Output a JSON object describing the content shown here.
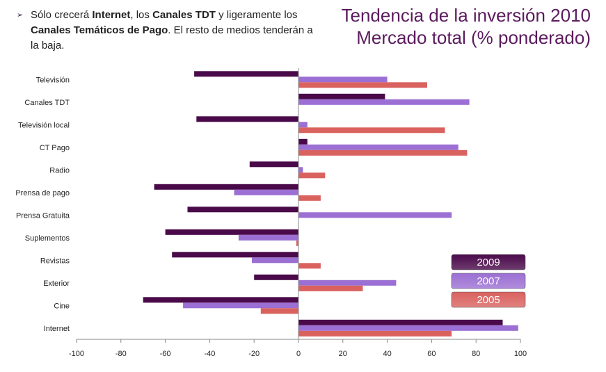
{
  "bullet": {
    "marker": "➢",
    "t1": "Sólo crecerá ",
    "b1": "Internet",
    "t2": ", los ",
    "b2": "Canales TDT",
    "t3": " y ligeramente los ",
    "b3": "Canales Temáticos de Pago",
    "t4": ". El resto de medios tenderán a la baja."
  },
  "title": {
    "line1": "Tendencia de la inversión 2010",
    "line2": "Mercado total (% ponderado)"
  },
  "colors": {
    "2009": "#4a0a4a",
    "2007": "#9b6fd3",
    "2005": "#d9625f",
    "title": "#5b1b5e"
  },
  "chart_data": {
    "type": "bar",
    "orientation": "horizontal",
    "categories": [
      "Televisión",
      "Canales TDT",
      "Televisión local",
      "CT Pago",
      "Radio",
      "Prensa de pago",
      "Prensa Gratuita",
      "Suplementos",
      "Revistas",
      "Exterior",
      "Cine",
      "Internet"
    ],
    "series": [
      {
        "name": "2009",
        "values": [
          -47,
          39,
          -46,
          4,
          -22,
          -65,
          -50,
          -60,
          -57,
          -20,
          -70,
          92
        ]
      },
      {
        "name": "2007",
        "values": [
          40,
          77,
          4,
          72,
          2,
          -29,
          69,
          -27,
          -21,
          44,
          -52,
          99
        ]
      },
      {
        "name": "2005",
        "values": [
          58,
          0,
          66,
          76,
          12,
          10,
          0,
          -1,
          10,
          29,
          -17,
          69
        ]
      }
    ],
    "xlim": [
      -100,
      100
    ],
    "xticks": [
      -100,
      -80,
      -60,
      -40,
      -20,
      0,
      20,
      40,
      60,
      80,
      100
    ],
    "legend": "right-bottom"
  }
}
